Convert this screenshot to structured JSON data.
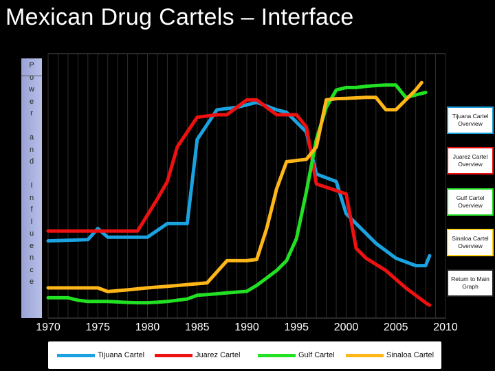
{
  "title": "Mexican Drug Cartels – Interface",
  "y_axis_label": [
    "P",
    "o",
    "w",
    "e",
    "r",
    "",
    "a",
    "n",
    "d",
    "",
    "I",
    "n",
    "f",
    "l",
    "u",
    "e",
    "n",
    "c",
    "e"
  ],
  "buttons": [
    {
      "label": "Tijuana Cartel Overview",
      "border": "#1a9fd9"
    },
    {
      "label": "Juarez Cartel Overview",
      "border": "#e80f0f"
    },
    {
      "label": "Gulf Cartel Overview",
      "border": "#22dd22"
    },
    {
      "label": "Sinaloa Cartel Overview",
      "border": "#ffd21a"
    },
    {
      "label": "Return to Main Graph",
      "border": "#222222"
    }
  ],
  "chart_data": {
    "type": "line",
    "title": "Mexican Drug Cartels – Interface",
    "xlabel": "",
    "ylabel": "Power and Influence",
    "xlim": [
      1970,
      2010
    ],
    "ylim": [
      0,
      100
    ],
    "x_ticks": [
      "1970",
      "1975",
      "1980",
      "1985",
      "1990",
      "1995",
      "2000",
      "2005",
      "2010"
    ],
    "grid": true,
    "legend_position": "bottom",
    "series": [
      {
        "name": "Tijuana Cartel",
        "color": "#1aa3e0",
        "x": [
          1970,
          1974,
          1975,
          1976,
          1980,
          1982,
          1984,
          1985,
          1987,
          1989,
          1991,
          1993,
          1994,
          1996,
          1997,
          1999,
          2000,
          2002,
          2003,
          2005,
          2007,
          2008,
          2008.4
        ],
        "y": [
          29,
          29.5,
          34,
          30.5,
          30.5,
          36,
          36,
          70,
          82,
          83,
          85,
          82,
          81,
          73,
          56,
          53,
          40,
          32,
          28,
          22,
          19,
          19,
          23
        ]
      },
      {
        "name": "Juarez Cartel",
        "color": "#ee1111",
        "x": [
          1970,
          1973,
          1976,
          1979,
          1981,
          1982,
          1983,
          1985,
          1987,
          1988,
          1990,
          1991,
          1993,
          1995,
          1996,
          1997,
          2000,
          2001,
          2002,
          2004,
          2006,
          2008,
          2008.4
        ],
        "y": [
          33,
          33,
          33,
          33,
          46,
          53,
          67,
          79,
          80,
          80,
          86,
          86,
          80,
          80,
          75,
          52,
          48,
          26,
          22,
          17,
          10,
          4,
          3
        ]
      },
      {
        "name": "Gulf Cartel",
        "color": "#22e022",
        "x": [
          1970,
          1972,
          1973,
          1974,
          1975,
          1976,
          1977,
          1978,
          1979,
          1980,
          1981,
          1982,
          1983,
          1984,
          1985,
          1986,
          1987,
          1988,
          1989,
          1990,
          1991,
          1992,
          1993,
          1994,
          1995,
          1996,
          1997,
          1998,
          1999,
          2000,
          2001,
          2002,
          2003,
          2004,
          2005,
          2006,
          2007,
          2008
        ],
        "y": [
          6,
          6,
          5,
          4.5,
          4.5,
          4.5,
          4.3,
          4.1,
          4,
          4,
          4.2,
          4.5,
          5,
          5.5,
          7,
          7.3,
          7.6,
          8,
          8.3,
          8.6,
          11,
          14,
          17,
          21,
          30,
          49,
          70,
          83,
          90,
          91,
          91,
          91.5,
          91.8,
          92,
          92,
          87,
          88,
          89
        ]
      },
      {
        "name": "Sinaloa Cartel",
        "color": "#ffb619",
        "x": [
          1970,
          1975,
          1976,
          1978,
          1980,
          1982,
          1984,
          1986,
          1988,
          1990,
          1991,
          1992,
          1993,
          1994,
          1995,
          1996,
          1997,
          1998,
          1999,
          2000,
          2001,
          2002,
          2003,
          2004,
          2005,
          2006,
          2007,
          2007.6
        ],
        "y": [
          10,
          10,
          8.5,
          9.2,
          10,
          10.6,
          11.3,
          12,
          21,
          21,
          21.5,
          34,
          50,
          61,
          61.5,
          62,
          67,
          86,
          86.5,
          86.6,
          86.8,
          87,
          87,
          82,
          82,
          86,
          90,
          93
        ]
      }
    ]
  }
}
